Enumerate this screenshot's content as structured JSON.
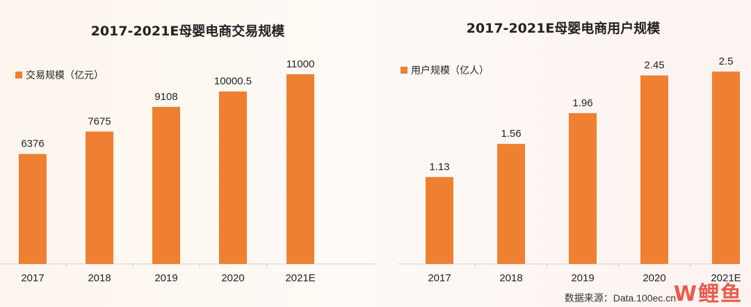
{
  "charts": [
    {
      "title": "2017-2021E母婴电商交易规模",
      "legend": "交易规模（亿元）"
    },
    {
      "title": "2017-2021E母婴电商用户规模",
      "legend": "用户规模（亿人）"
    }
  ],
  "chart_data": [
    {
      "type": "bar",
      "title": "2017-2021E母婴电商交易规模",
      "categories": [
        "2017",
        "2018",
        "2019",
        "2020",
        "2021E"
      ],
      "series": [
        {
          "name": "交易规模（亿元）",
          "values": [
            6376,
            7675,
            9108,
            10000.5,
            11000
          ]
        }
      ],
      "labels": [
        "6376",
        "7675",
        "9108",
        "10000.5",
        "11000"
      ],
      "ylim": [
        0,
        14500
      ],
      "grid": false,
      "legend_position": "top-left",
      "color": "#ef7f31"
    },
    {
      "type": "bar",
      "title": "2017-2021E母婴电商用户规模",
      "categories": [
        "2017",
        "2018",
        "2019",
        "2020",
        "2021E"
      ],
      "series": [
        {
          "name": "用户规模（亿人）",
          "values": [
            1.13,
            1.56,
            1.96,
            2.45,
            2.5
          ]
        }
      ],
      "labels": [
        "1.13",
        "1.56",
        "1.96",
        "2.45",
        "2.5"
      ],
      "ylim": [
        0,
        3.25
      ],
      "grid": false,
      "legend_position": "top-left",
      "color": "#ef7f31"
    }
  ],
  "footer": {
    "source": "数据来源：Data.100ec.cn",
    "watermark": "W鲤鱼"
  }
}
